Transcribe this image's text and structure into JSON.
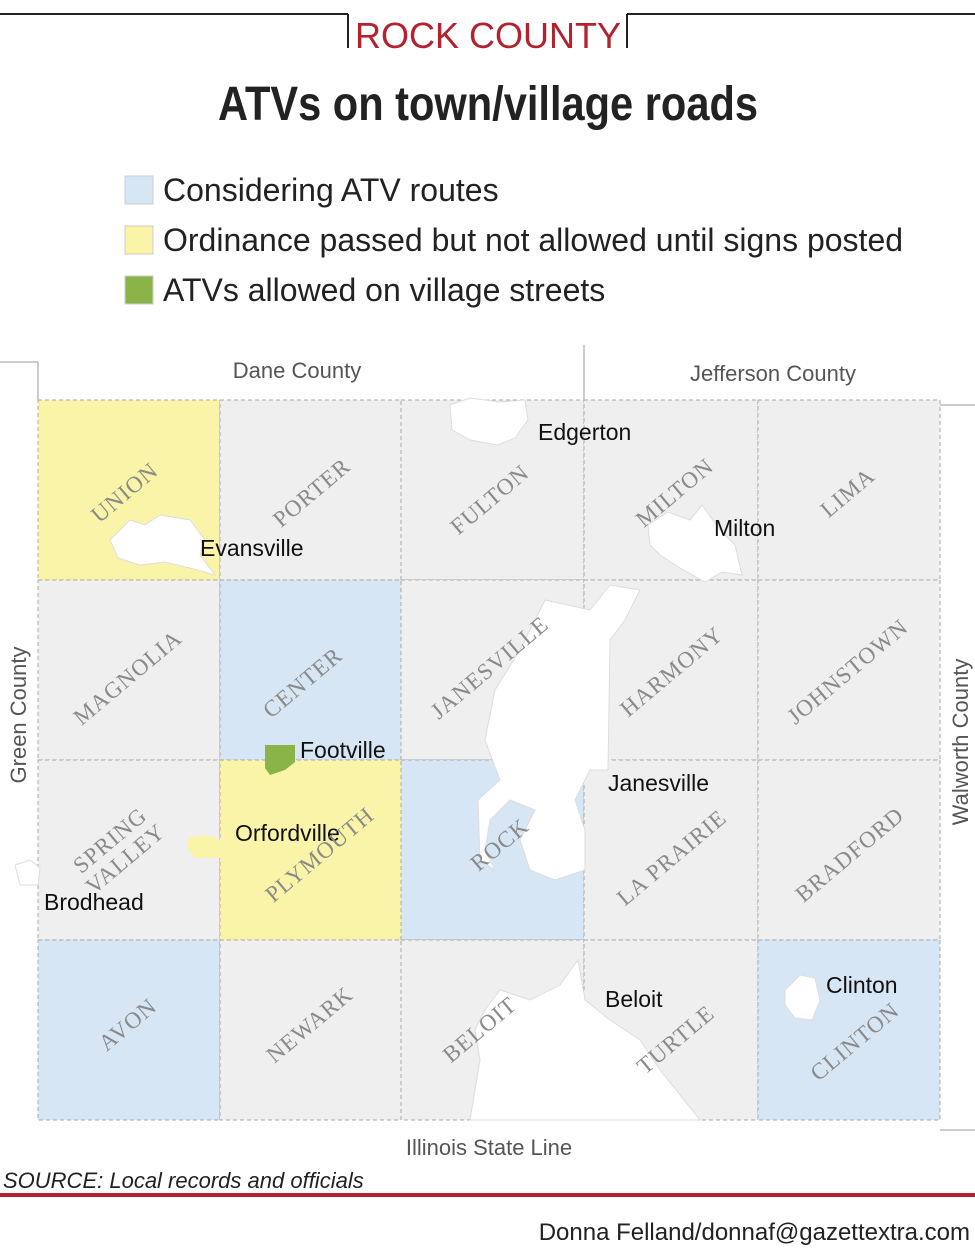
{
  "header": {
    "kicker": "ROCK COUNTY",
    "title": "ATVs on town/village roads"
  },
  "legend": [
    {
      "label": "Considering ATV routes",
      "color": "#d7e6f4"
    },
    {
      "label": "Ordinance passed but not allowed until signs posted",
      "color": "#faf4a9"
    },
    {
      "label": "ATVs allowed on village streets",
      "color": "#8ab448"
    }
  ],
  "map": {
    "neighbors": {
      "north_west": "Dane County",
      "north_east": "Jefferson County",
      "west": "Green County",
      "east": "Walworth County",
      "south": "Illinois State Line"
    },
    "townships": [
      {
        "name": "UNION",
        "color": "#faf4a9"
      },
      {
        "name": "PORTER",
        "color": "#efefef"
      },
      {
        "name": "FULTON",
        "color": "#efefef"
      },
      {
        "name": "MILTON",
        "color": "#efefef"
      },
      {
        "name": "LIMA",
        "color": "#efefef"
      },
      {
        "name": "MAGNOLIA",
        "color": "#efefef"
      },
      {
        "name": "CENTER",
        "color": "#d7e6f4"
      },
      {
        "name": "JANESVILLE",
        "color": "#efefef"
      },
      {
        "name": "HARMONY",
        "color": "#efefef"
      },
      {
        "name": "JOHNSTOWN",
        "color": "#efefef"
      },
      {
        "name": "SPRING VALLEY",
        "color": "#efefef"
      },
      {
        "name": "PLYMOUTH",
        "color": "#faf4a9"
      },
      {
        "name": "ROCK",
        "color": "#d7e6f4"
      },
      {
        "name": "LA PRAIRIE",
        "color": "#efefef"
      },
      {
        "name": "BRADFORD",
        "color": "#efefef"
      },
      {
        "name": "AVON",
        "color": "#d7e6f4"
      },
      {
        "name": "NEWARK",
        "color": "#efefef"
      },
      {
        "name": "BELOIT",
        "color": "#efefef"
      },
      {
        "name": "TURTLE",
        "color": "#efefef"
      },
      {
        "name": "CLINTON",
        "color": "#d7e6f4"
      }
    ],
    "cities": [
      {
        "name": "Edgerton",
        "color": "#ffffff"
      },
      {
        "name": "Evansville",
        "color": "#ffffff"
      },
      {
        "name": "Milton",
        "color": "#ffffff"
      },
      {
        "name": "Footville",
        "color": "#8ab448"
      },
      {
        "name": "Janesville",
        "color": "#ffffff"
      },
      {
        "name": "Orfordville",
        "color": "#faf4a9"
      },
      {
        "name": "Brodhead",
        "color": "#ffffff"
      },
      {
        "name": "Beloit",
        "color": "#ffffff"
      },
      {
        "name": "Clinton",
        "color": "#ffffff"
      }
    ]
  },
  "footer": {
    "source": "SOURCE: Local records and officials",
    "credit": "Donna Felland/donnaf@gazettextra.com"
  }
}
